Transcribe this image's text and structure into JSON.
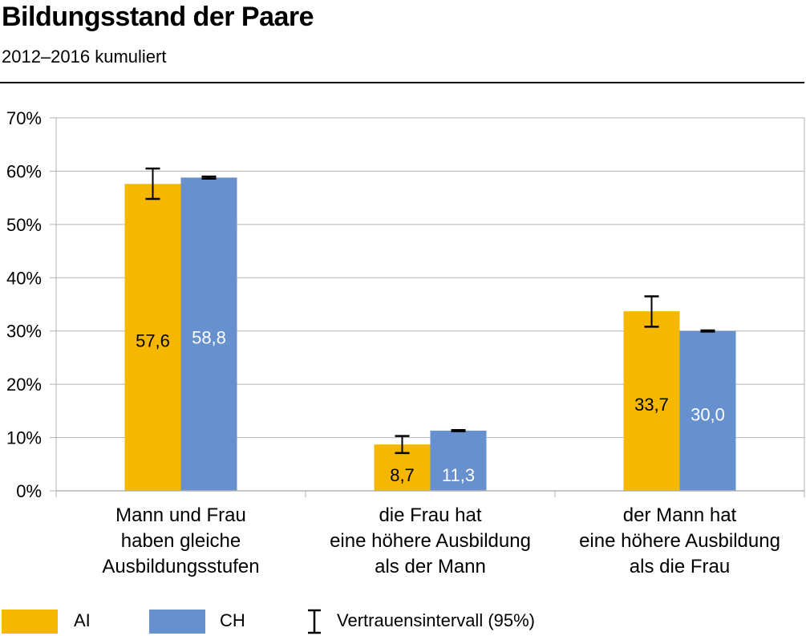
{
  "title": "Bildungsstand der Paare",
  "subtitle": "2012–2016 kumuliert",
  "colors": {
    "AI": "#F5B700",
    "CH": "#6790CE",
    "grid": "#B3B3B3",
    "axis": "#000000"
  },
  "chart_data": {
    "type": "bar",
    "title": "Bildungsstand der Paare",
    "subtitle": "2012–2016 kumuliert",
    "categories": [
      [
        "Mann und Frau",
        "haben gleiche",
        "Ausbildungsstufen"
      ],
      [
        "die Frau hat",
        "eine höhere Ausbildung",
        "als der Mann"
      ],
      [
        "der Mann hat",
        "eine höhere Ausbildung",
        "als die Frau"
      ]
    ],
    "series": [
      {
        "name": "AI",
        "values": [
          57.6,
          8.7,
          33.7
        ],
        "labels": [
          "57,6",
          "8,7",
          "33,7"
        ],
        "ci": [
          [
            54.8,
            60.5
          ],
          [
            7.1,
            10.3
          ],
          [
            30.8,
            36.5
          ]
        ]
      },
      {
        "name": "CH",
        "values": [
          58.8,
          11.3,
          30.0
        ],
        "labels": [
          "58,8",
          "11,3",
          "30,0"
        ],
        "ci": [
          [
            58.6,
            59.0
          ],
          [
            11.2,
            11.4
          ],
          [
            29.9,
            30.1
          ]
        ]
      }
    ],
    "ylim": [
      0,
      70
    ],
    "yticks": [
      "0%",
      "10%",
      "20%",
      "30%",
      "40%",
      "50%",
      "60%",
      "70%"
    ],
    "grid": true,
    "legend": {
      "placement": "bottom",
      "ci_label": "Vertrauensintervall (95%)"
    }
  }
}
